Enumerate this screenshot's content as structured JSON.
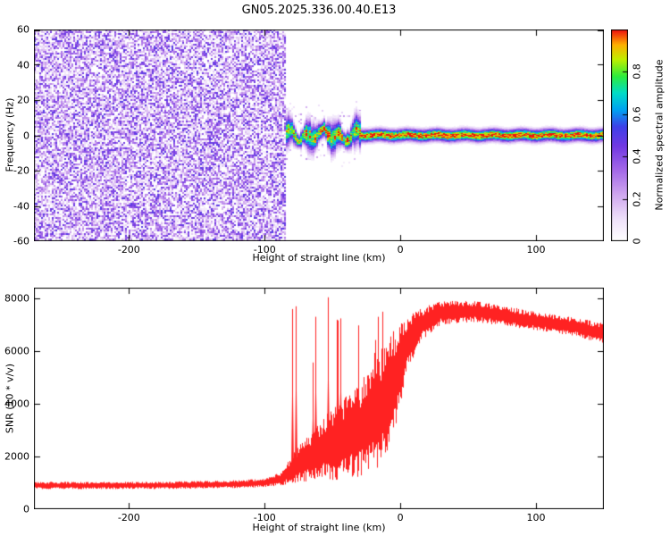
{
  "title": "GN05.2025.336.00.40.E13",
  "chart_data": [
    {
      "type": "heatmap",
      "title": "GN05.2025.336.00.40.E13",
      "xlabel": "Height of straight line (km)",
      "ylabel": "Frequency (Hz)",
      "xlim": [
        -270,
        150
      ],
      "ylim": [
        -60,
        60
      ],
      "xticks": [
        -200,
        -100,
        0,
        100
      ],
      "yticks": [
        -60,
        -40,
        -20,
        0,
        20,
        40,
        60
      ],
      "grid": false,
      "noise_region": {
        "x_start": -270,
        "x_end": -85,
        "amplitude_range": [
          0,
          0.5
        ],
        "description": "uniform purple speckle noise before signal acquisition"
      },
      "signal": {
        "x_start": -85,
        "x_end": 150,
        "center_freq_hz": 0,
        "blob_region": [
          -85,
          -30
        ],
        "blob_halfwidth_hz": 5,
        "line_halfwidth_hz": 3.2,
        "peak_amplitude": 1.0
      },
      "colorbar": {
        "label": "Normalized spectral amplitude",
        "ticks": [
          0,
          0.2,
          0.4,
          0.6,
          0.8
        ],
        "range": [
          0,
          1
        ],
        "stops": [
          [
            0,
            "#ffffff"
          ],
          [
            0.1,
            "#efe2fa"
          ],
          [
            0.22,
            "#cfa6ef"
          ],
          [
            0.34,
            "#a266e8"
          ],
          [
            0.45,
            "#7038e2"
          ],
          [
            0.54,
            "#3f3fe8"
          ],
          [
            0.62,
            "#00a2f2"
          ],
          [
            0.7,
            "#00dcc8"
          ],
          [
            0.78,
            "#2eec3c"
          ],
          [
            0.86,
            "#c0ee00"
          ],
          [
            0.93,
            "#ffae00"
          ],
          [
            1,
            "#ee1010"
          ]
        ]
      }
    },
    {
      "type": "line",
      "xlabel": "Height of straight line (km)",
      "ylabel": "SNR (10 * v/v)",
      "xlim": [
        -270,
        150
      ],
      "ylim": [
        0,
        8400
      ],
      "xticks": [
        -200,
        -100,
        0,
        100
      ],
      "yticks": [
        0,
        2000,
        4000,
        6000,
        8000
      ],
      "series": [
        {
          "name": "SNR",
          "color": "#ff2222",
          "spike_region": [
            -80,
            -4
          ],
          "profile": [
            [
              -270,
              900,
              140
            ],
            [
              -180,
              900,
              140
            ],
            [
              -120,
              950,
              150
            ],
            [
              -100,
              1000,
              170
            ],
            [
              -88,
              1150,
              250
            ],
            [
              -75,
              1700,
              700
            ],
            [
              -60,
              2200,
              1100
            ],
            [
              -45,
              2600,
              1500
            ],
            [
              -30,
              3000,
              1800
            ],
            [
              -18,
              3600,
              2100
            ],
            [
              -8,
              4300,
              2300
            ],
            [
              -2,
              5200,
              1800
            ],
            [
              5,
              6300,
              1100
            ],
            [
              15,
              7000,
              650
            ],
            [
              30,
              7450,
              450
            ],
            [
              55,
              7500,
              400
            ],
            [
              80,
              7300,
              380
            ],
            [
              105,
              7100,
              350
            ],
            [
              130,
              6900,
              350
            ],
            [
              150,
              6650,
              420
            ]
          ]
        }
      ]
    }
  ]
}
